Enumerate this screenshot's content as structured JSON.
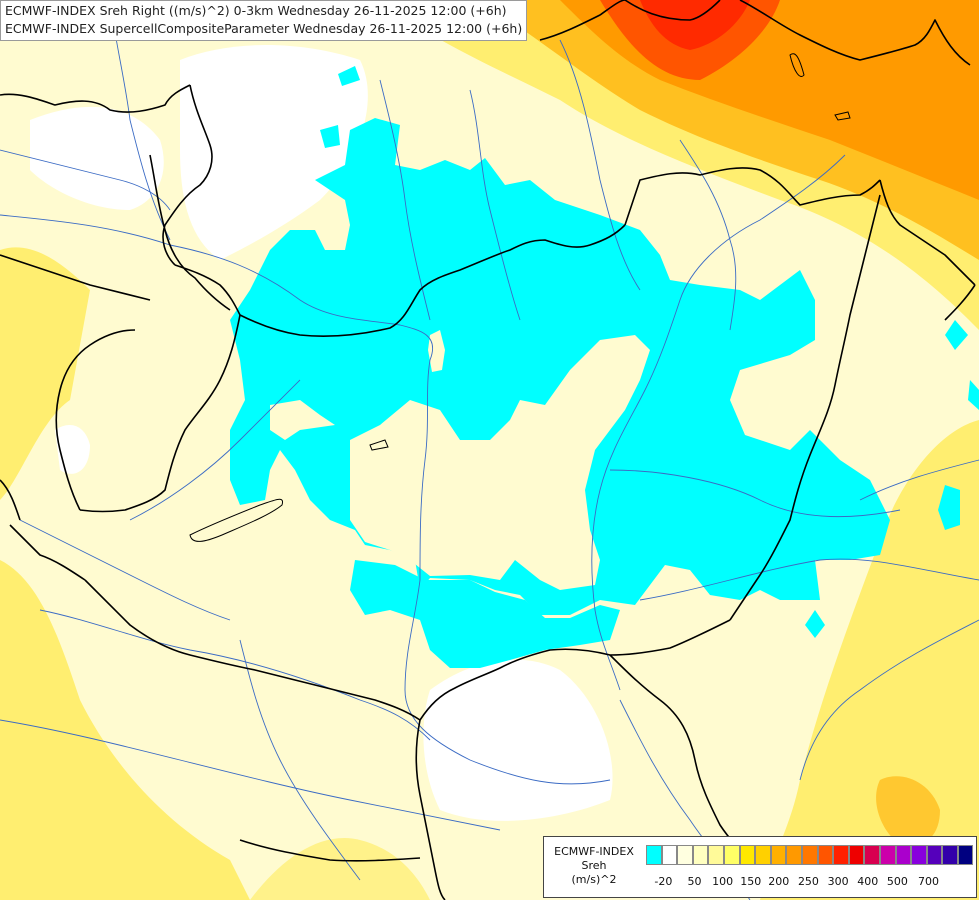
{
  "header": {
    "line1": "ECMWF-INDEX Sreh Right ((m/s)^2) 0-3km Wednesday 26-11-2025 12:00 (+6h)",
    "line2": "ECMWF-INDEX SupercellCompositeParameter Wednesday 26-11-2025 12:00 (+6h)"
  },
  "legend": {
    "line1": "ECMWF-INDEX",
    "line2": "Sreh",
    "line3": "(m/s)^2",
    "swatch_colors": [
      "#00ffff",
      "#ffffff",
      "#ffffe0",
      "#ffffc0",
      "#fffa99",
      "#ffff66",
      "#ffe800",
      "#ffd000",
      "#ffb000",
      "#ff9900",
      "#ff7700",
      "#ff5500",
      "#ff2000",
      "#ee0000",
      "#d80050",
      "#cc00aa",
      "#aa00cc",
      "#8800dd",
      "#5500bb",
      "#3300aa",
      "#000080"
    ],
    "ticks": [
      "-20",
      "50",
      "100",
      "150",
      "200",
      "250",
      "300",
      "400",
      "500",
      "700"
    ]
  },
  "colors": {
    "cyan_zone": "#00ffff",
    "light_yellow": "#fffbd0",
    "yellow": "#ffef66",
    "orange": "#ff9a00",
    "red": "#ff3a00",
    "border_line": "#000000",
    "river_line": "#3b6bc4"
  }
}
